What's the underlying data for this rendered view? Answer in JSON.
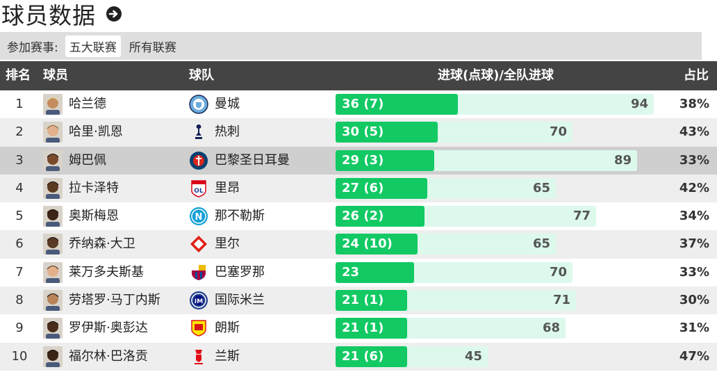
{
  "header": {
    "title": "球员数据"
  },
  "filter": {
    "label": "参加赛事:",
    "options": [
      "五大联赛",
      "所有联赛"
    ],
    "active_index": 0
  },
  "columns": {
    "rank": "排名",
    "player": "球员",
    "team": "球队",
    "goals": "进球(点球)/全队进球",
    "pct": "占比"
  },
  "colors": {
    "goals_bar": "#12c964",
    "total_bar": "#dcf9ec",
    "header_bg": "#444444",
    "highlight_row": "#cfcfcf"
  },
  "rows": [
    {
      "rank": "1",
      "player": "哈兰德",
      "team": "曼城",
      "team_icon": "man-city-crest-icon",
      "goals": 36,
      "goals_label": "36 (7)",
      "total": 94,
      "pct": "38%"
    },
    {
      "rank": "2",
      "player": "哈里·凯恩",
      "team": "热刺",
      "team_icon": "tottenham-crest-icon",
      "goals": 30,
      "goals_label": "30 (5)",
      "total": 70,
      "pct": "43%"
    },
    {
      "rank": "3",
      "player": "姆巴佩",
      "team": "巴黎圣日耳曼",
      "team_icon": "psg-crest-icon",
      "goals": 29,
      "goals_label": "29 (3)",
      "total": 89,
      "pct": "33%"
    },
    {
      "rank": "4",
      "player": "拉卡泽特",
      "team": "里昂",
      "team_icon": "lyon-crest-icon",
      "goals": 27,
      "goals_label": "27 (6)",
      "total": 65,
      "pct": "42%"
    },
    {
      "rank": "5",
      "player": "奥斯梅恩",
      "team": "那不勒斯",
      "team_icon": "napoli-crest-icon",
      "goals": 26,
      "goals_label": "26 (2)",
      "total": 77,
      "pct": "34%"
    },
    {
      "rank": "6",
      "player": "乔纳森·大卫",
      "team": "里尔",
      "team_icon": "lille-crest-icon",
      "goals": 24,
      "goals_label": "24 (10)",
      "total": 65,
      "pct": "37%"
    },
    {
      "rank": "7",
      "player": "莱万多夫斯基",
      "team": "巴塞罗那",
      "team_icon": "barcelona-crest-icon",
      "goals": 23,
      "goals_label": "23",
      "total": 70,
      "pct": "33%"
    },
    {
      "rank": "8",
      "player": "劳塔罗·马丁内斯",
      "team": "国际米兰",
      "team_icon": "inter-crest-icon",
      "goals": 21,
      "goals_label": "21 (1)",
      "total": 71,
      "pct": "30%"
    },
    {
      "rank": "9",
      "player": "罗伊斯·奥彭达",
      "team": "朗斯",
      "team_icon": "lens-crest-icon",
      "goals": 21,
      "goals_label": "21 (1)",
      "total": 68,
      "pct": "31%"
    },
    {
      "rank": "10",
      "player": "福尔林·巴洛贡",
      "team": "兰斯",
      "team_icon": "reims-crest-icon",
      "goals": 21,
      "goals_label": "21 (6)",
      "total": 45,
      "pct": "47%"
    }
  ]
}
